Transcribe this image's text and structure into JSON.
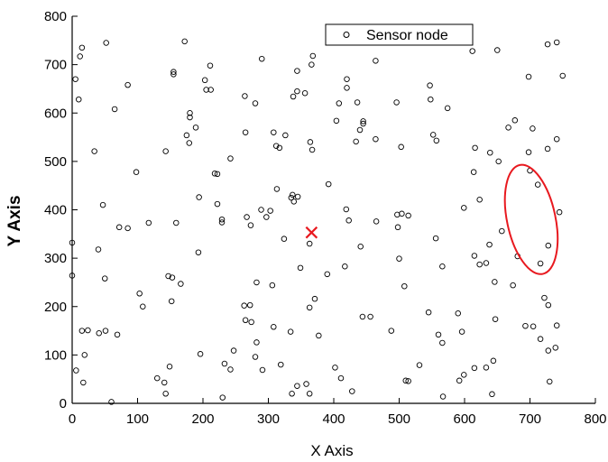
{
  "chart_data": {
    "type": "scatter",
    "title": "",
    "xlabel": "X Axis",
    "ylabel": "Y Axis",
    "xlim": [
      0,
      800
    ],
    "ylim": [
      0,
      800
    ],
    "xticks": [
      0,
      100,
      200,
      300,
      400,
      500,
      600,
      700,
      800
    ],
    "yticks": [
      0,
      100,
      200,
      300,
      400,
      500,
      600,
      700,
      800
    ],
    "grid": false,
    "legend_position": "top-center",
    "series": [
      {
        "name": "Sensor node",
        "marker": "open-circle",
        "color": "#000000",
        "points": [
          [
            5,
            670
          ],
          [
            12,
            717
          ],
          [
            15,
            735
          ],
          [
            10,
            628
          ],
          [
            52,
            745
          ],
          [
            172,
            748
          ],
          [
            290,
            712
          ],
          [
            368,
            718
          ],
          [
            366,
            700
          ],
          [
            344,
            687
          ],
          [
            464,
            708
          ],
          [
            420,
            670
          ],
          [
            420,
            652
          ],
          [
            203,
            668
          ],
          [
            205,
            648
          ],
          [
            211,
            698
          ],
          [
            212,
            648
          ],
          [
            155,
            685
          ],
          [
            155,
            680
          ],
          [
            85,
            658
          ],
          [
            180,
            600
          ],
          [
            180,
            591
          ],
          [
            264,
            635
          ],
          [
            280,
            620
          ],
          [
            338,
            634
          ],
          [
            344,
            645
          ],
          [
            356,
            641
          ],
          [
            408,
            620
          ],
          [
            404,
            584
          ],
          [
            445,
            583
          ],
          [
            445,
            578
          ],
          [
            436,
            622
          ],
          [
            496,
            622
          ],
          [
            547,
            657
          ],
          [
            548,
            628
          ],
          [
            574,
            610
          ],
          [
            612,
            728
          ],
          [
            650,
            730
          ],
          [
            698,
            675
          ],
          [
            727,
            742
          ],
          [
            741,
            746
          ],
          [
            750,
            677
          ],
          [
            34,
            521
          ],
          [
            65,
            608
          ],
          [
            175,
            554
          ],
          [
            189,
            570
          ],
          [
            179,
            538
          ],
          [
            265,
            560
          ],
          [
            308,
            560
          ],
          [
            312,
            532
          ],
          [
            317,
            528
          ],
          [
            326,
            554
          ],
          [
            364,
            540
          ],
          [
            367,
            524
          ],
          [
            464,
            546
          ],
          [
            434,
            541
          ],
          [
            440,
            565
          ],
          [
            503,
            530
          ],
          [
            552,
            555
          ],
          [
            557,
            543
          ],
          [
            614,
            478
          ],
          [
            616,
            528
          ],
          [
            639,
            518
          ],
          [
            652,
            500
          ],
          [
            667,
            570
          ],
          [
            677,
            585
          ],
          [
            698,
            519
          ],
          [
            704,
            568
          ],
          [
            700,
            481
          ],
          [
            712,
            452
          ],
          [
            727,
            526
          ],
          [
            741,
            546
          ],
          [
            745,
            395
          ],
          [
            728,
            326
          ],
          [
            716,
            289
          ],
          [
            98,
            478
          ],
          [
            143,
            521
          ],
          [
            218,
            475
          ],
          [
            222,
            474
          ],
          [
            242,
            506
          ],
          [
            194,
            426
          ],
          [
            117,
            373
          ],
          [
            159,
            373
          ],
          [
            229,
            374
          ],
          [
            229,
            380
          ],
          [
            267,
            385
          ],
          [
            273,
            368
          ],
          [
            289,
            400
          ],
          [
            297,
            385
          ],
          [
            303,
            398
          ],
          [
            313,
            443
          ],
          [
            335,
            425
          ],
          [
            337,
            431
          ],
          [
            339,
            417
          ],
          [
            345,
            427
          ],
          [
            324,
            340
          ],
          [
            392,
            453
          ],
          [
            419,
            401
          ],
          [
            423,
            378
          ],
          [
            465,
            376
          ],
          [
            497,
            390
          ],
          [
            504,
            392
          ],
          [
            514,
            388
          ],
          [
            599,
            404
          ],
          [
            623,
            421
          ],
          [
            638,
            328
          ],
          [
            657,
            356
          ],
          [
            681,
            304
          ],
          [
            674,
            244
          ],
          [
            722,
            218
          ],
          [
            728,
            203
          ],
          [
            0,
            332
          ],
          [
            0,
            264
          ],
          [
            40,
            318
          ],
          [
            50,
            258
          ],
          [
            47,
            410
          ],
          [
            72,
            364
          ],
          [
            85,
            362
          ],
          [
            103,
            227
          ],
          [
            108,
            200
          ],
          [
            147,
            263
          ],
          [
            153,
            260
          ],
          [
            152,
            211
          ],
          [
            166,
            247
          ],
          [
            193,
            312
          ],
          [
            222,
            412
          ],
          [
            263,
            202
          ],
          [
            265,
            172
          ],
          [
            272,
            203
          ],
          [
            274,
            168
          ],
          [
            282,
            126
          ],
          [
            282,
            250
          ],
          [
            306,
            244
          ],
          [
            349,
            280
          ],
          [
            363,
            330
          ],
          [
            363,
            198
          ],
          [
            371,
            216
          ],
          [
            390,
            267
          ],
          [
            417,
            283
          ],
          [
            441,
            324
          ],
          [
            498,
            364
          ],
          [
            500,
            299
          ],
          [
            508,
            242
          ],
          [
            556,
            341
          ],
          [
            566,
            283
          ],
          [
            615,
            305
          ],
          [
            623,
            287
          ],
          [
            646,
            251
          ],
          [
            633,
            290
          ],
          [
            15,
            150
          ],
          [
            19,
            100
          ],
          [
            24,
            151
          ],
          [
            41,
            145
          ],
          [
            51,
            150
          ],
          [
            69,
            142
          ],
          [
            17,
            43
          ],
          [
            6,
            68
          ],
          [
            60,
            3
          ],
          [
            130,
            52
          ],
          [
            141,
            43
          ],
          [
            143,
            20
          ],
          [
            149,
            76
          ],
          [
            196,
            102
          ],
          [
            230,
            12
          ],
          [
            247,
            109
          ],
          [
            242,
            70
          ],
          [
            233,
            82
          ],
          [
            280,
            96
          ],
          [
            291,
            69
          ],
          [
            308,
            158
          ],
          [
            319,
            80
          ],
          [
            334,
            148
          ],
          [
            336,
            20
          ],
          [
            344,
            36
          ],
          [
            358,
            40
          ],
          [
            363,
            20
          ],
          [
            377,
            140
          ],
          [
            402,
            74
          ],
          [
            411,
            52
          ],
          [
            428,
            25
          ],
          [
            444,
            179
          ],
          [
            456,
            179
          ],
          [
            488,
            150
          ],
          [
            510,
            47
          ],
          [
            514,
            46
          ],
          [
            531,
            79
          ],
          [
            545,
            188
          ],
          [
            560,
            142
          ],
          [
            566,
            125
          ],
          [
            567,
            14
          ],
          [
            592,
            47
          ],
          [
            590,
            186
          ],
          [
            596,
            148
          ],
          [
            599,
            59
          ],
          [
            615,
            73
          ],
          [
            633,
            74
          ],
          [
            642,
            19
          ],
          [
            647,
            174
          ],
          [
            644,
            88
          ],
          [
            693,
            160
          ],
          [
            705,
            159
          ],
          [
            716,
            133
          ],
          [
            728,
            109
          ],
          [
            739,
            115
          ],
          [
            741,
            161
          ],
          [
            730,
            45
          ]
        ]
      },
      {
        "name": "",
        "marker": "x",
        "color": "#e8191f",
        "points": [
          [
            366,
            353
          ]
        ]
      }
    ],
    "annotations": [
      {
        "type": "ellipse",
        "color": "#e8191f",
        "cx": 702,
        "cy": 380,
        "rx": 37,
        "ry": 115,
        "rotation_deg": -12
      }
    ]
  }
}
